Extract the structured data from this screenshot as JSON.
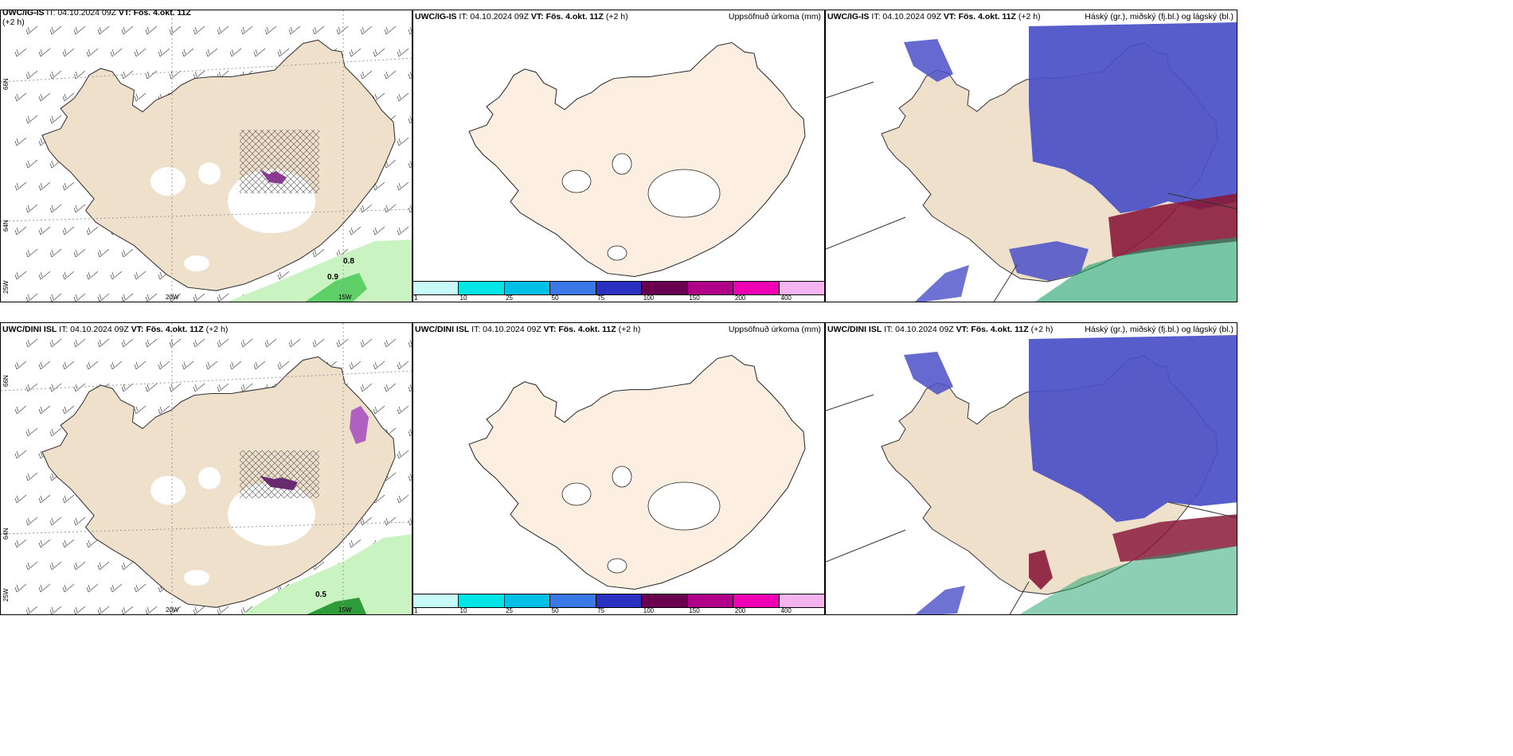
{
  "rows": [
    {
      "left": {
        "title_model": "UWC/IG-IS",
        "title_it": " IT: 04.10.2024 09Z ",
        "title_vt": "VT: Fös. 4.okt. 11Z",
        "title_h": " (+2 h)",
        "values": [
          "0.8",
          "0.9"
        ]
      },
      "mid": {
        "title_model": "UWC/IG-IS",
        "title_it": " IT: 04.10.2024 09Z ",
        "title_vt": "VT: Fös. 4.okt. 11Z",
        "title_h": " (+2 h)",
        "right_label": "Uppsöfnuð úrkoma (mm)"
      },
      "right": {
        "title_model": "UWC/IG-IS",
        "title_it": " IT: 04.10.2024 09Z ",
        "title_vt": "VT: Fös. 4.okt. 11Z",
        "title_h": " (+2 h)",
        "right_label": "Háský (gr.), miðský (fj.bl.) og lágský (bl.)"
      }
    },
    {
      "left": {
        "title_model": "UWC/DINI ISL",
        "title_it": " IT: 04.10.2024 09Z ",
        "title_vt": "VT: Fös. 4.okt. 11Z",
        "title_h": " (+2 h)",
        "values": [
          "0.5"
        ]
      },
      "mid": {
        "title_model": "UWC/DINI ISL",
        "title_it": " IT: 04.10.2024 09Z ",
        "title_vt": "VT: Fös. 4.okt. 11Z",
        "title_h": " (+2 h)",
        "right_label": "Uppsöfnuð úrkoma (mm)"
      },
      "right": {
        "title_model": "UWC/DINI ISL",
        "title_it": " IT: 04.10.2024 09Z ",
        "title_vt": "VT: Fös. 4.okt. 11Z",
        "title_h": " (+2 h)",
        "right_label": "Háský (gr.), miðský (fj.bl.) og lágský (bl.)"
      }
    }
  ],
  "grid_labels": {
    "lon": [
      "20W",
      "15W"
    ],
    "lat": [
      "66N",
      "64N",
      "25W"
    ]
  },
  "colorbar": {
    "ticks": [
      "1",
      "10",
      "25",
      "50",
      "75",
      "100",
      "150",
      "200",
      "400"
    ],
    "colors": [
      "#c8fafa",
      "#00e6e6",
      "#00c0e8",
      "#3a78e8",
      "#2a30c0",
      "#6a0050",
      "#b0008a",
      "#f000b4",
      "#f4b4f0"
    ]
  },
  "colors": {
    "land": "#efe0cc",
    "land_mid": "#fcefe2",
    "cloud_low": "#4a4fc8",
    "cloud_mid": "#8a1a3a",
    "cloud_high": "#1aa06a",
    "precip_green": "#9ee89a"
  }
}
